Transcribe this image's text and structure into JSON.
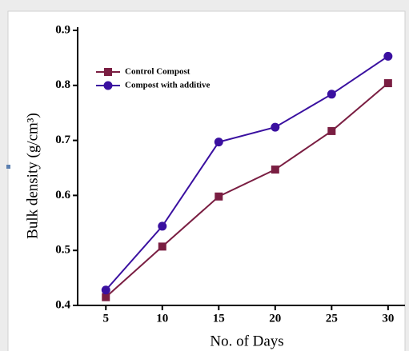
{
  "chart_data": {
    "type": "line",
    "x_label": "No. of Days",
    "y_label": "Bulk density (g/cm³)",
    "x": [
      5,
      10,
      15,
      20,
      25,
      30
    ],
    "series": [
      {
        "name": "Control Compost",
        "color": "#7a1e42",
        "marker": "square",
        "values": [
          0.415,
          0.507,
          0.598,
          0.647,
          0.717,
          0.804
        ]
      },
      {
        "name": "Compost with additive",
        "color": "#3a10a0",
        "marker": "circle",
        "values": [
          0.428,
          0.544,
          0.697,
          0.724,
          0.784,
          0.853
        ]
      }
    ],
    "xlim": [
      2.5,
      31.5
    ],
    "xticks": [
      5,
      10,
      15,
      20,
      25,
      30
    ],
    "ylim": [
      0.4,
      0.9
    ],
    "yticks": [
      0.4,
      0.5,
      0.6,
      0.7,
      0.8,
      0.9
    ],
    "legend": "upper left",
    "grid": false
  }
}
